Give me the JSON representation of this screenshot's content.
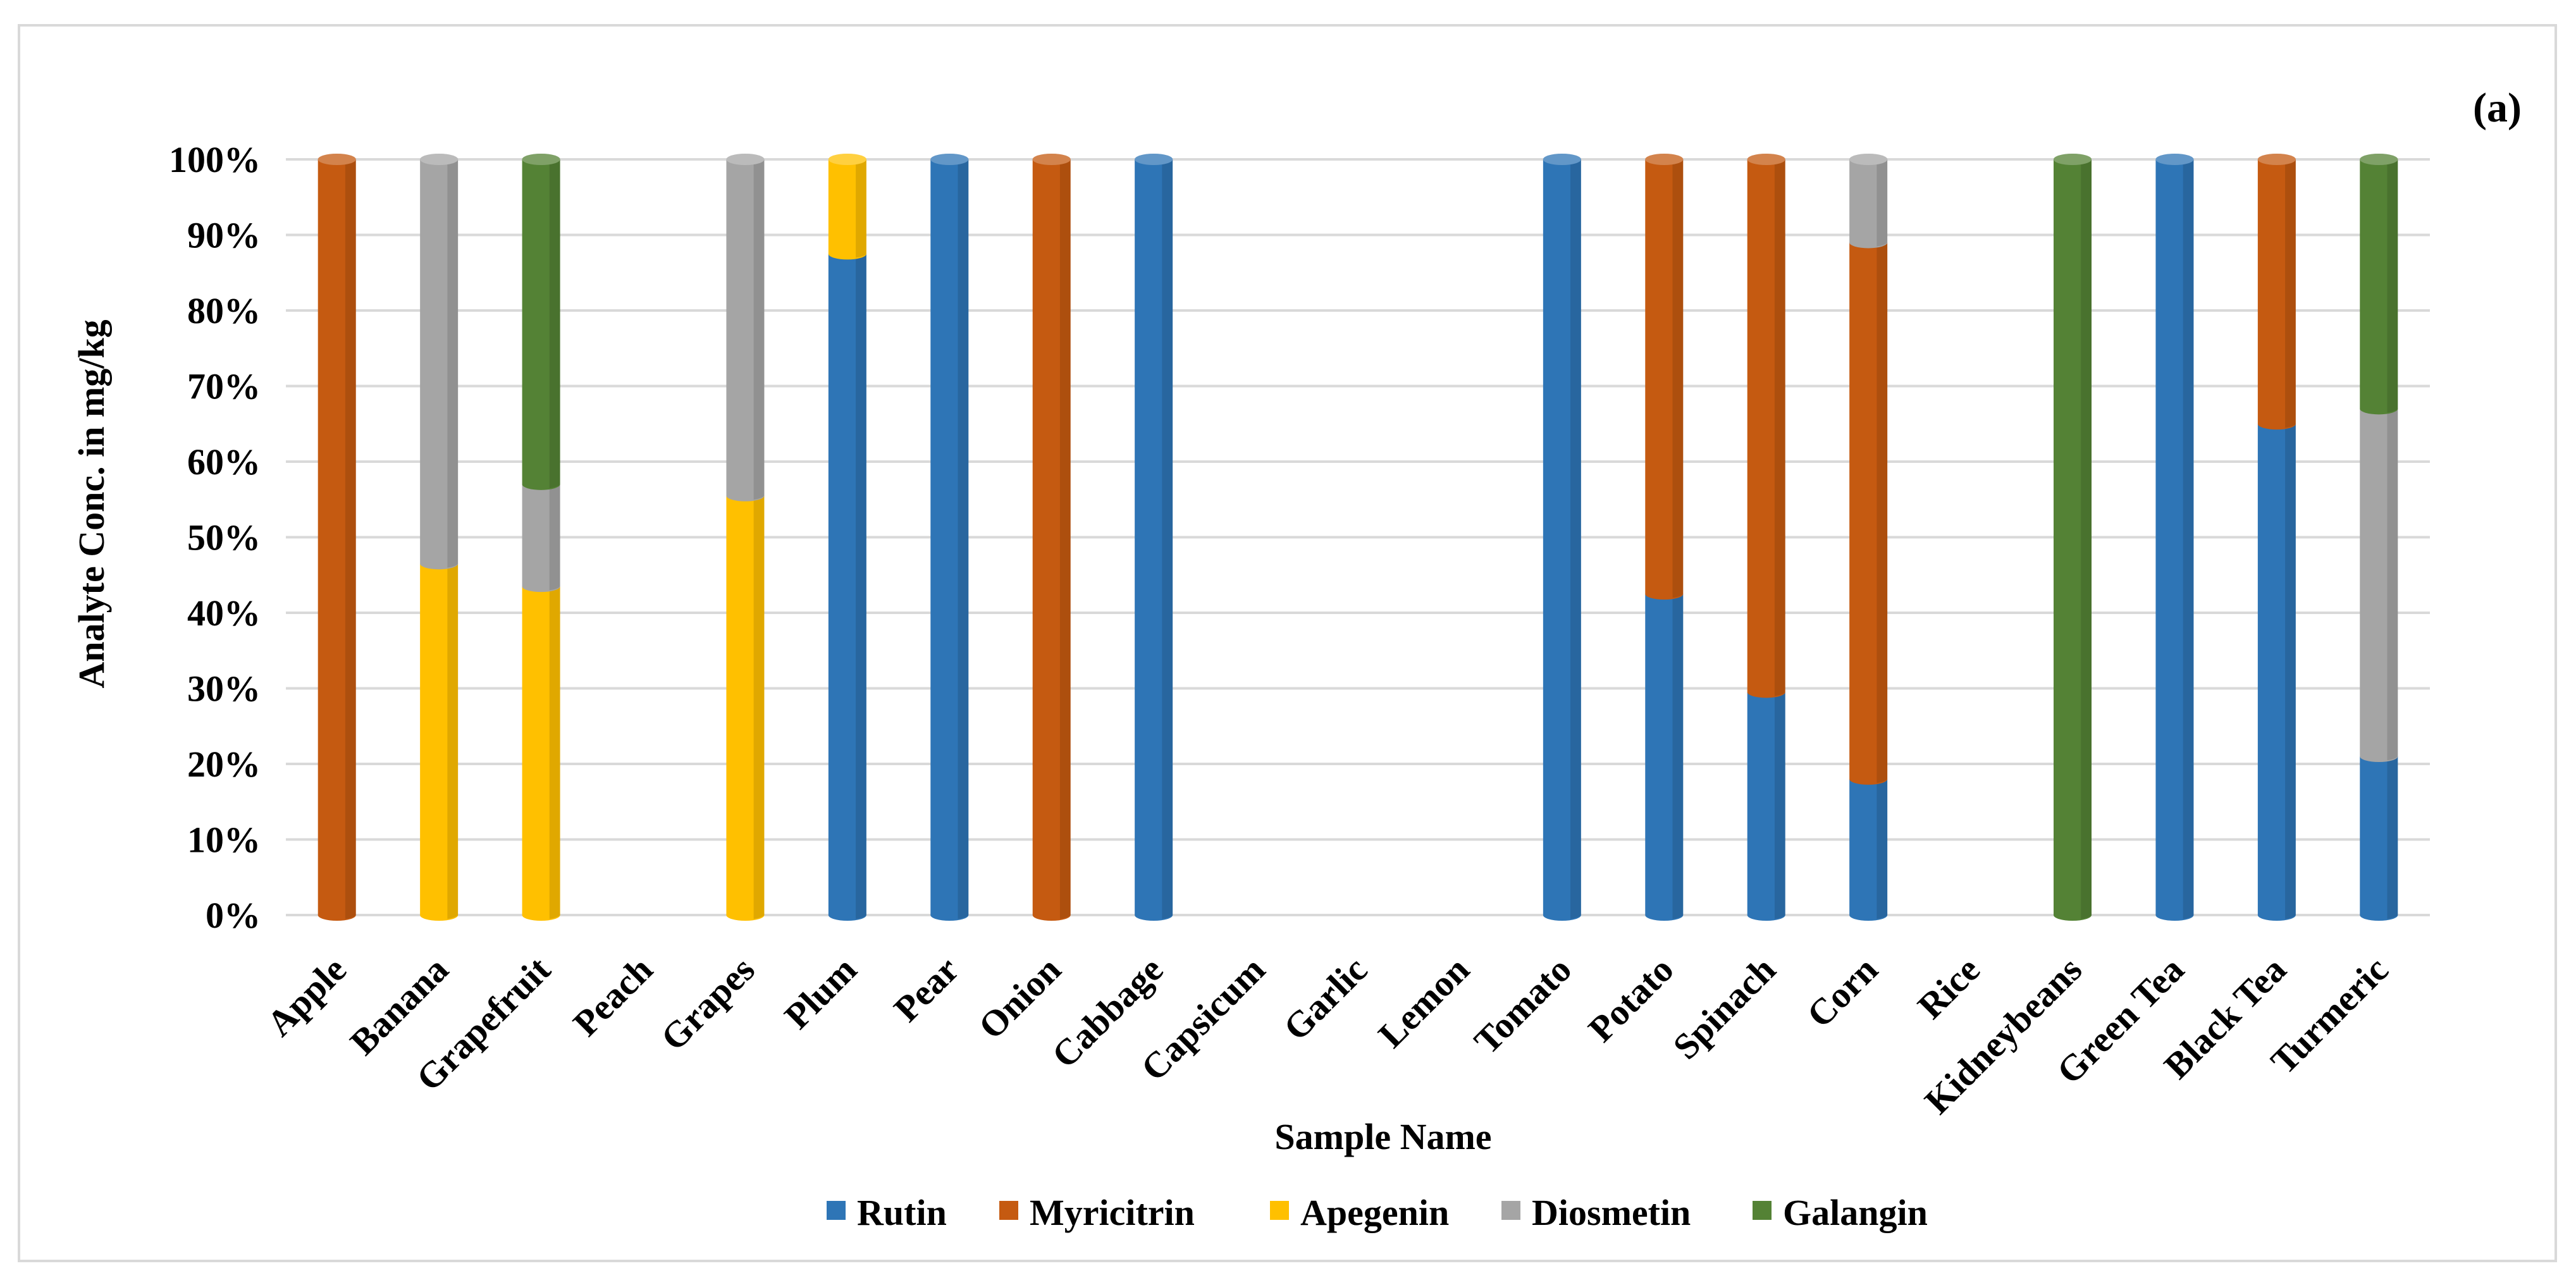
{
  "chart_data": {
    "type": "bar",
    "stacking": "percent",
    "panel_label": "(a)",
    "title": "",
    "xlabel": "Sample Name",
    "ylabel": "Analyte Conc. in mg/kg",
    "ylim": [
      0,
      100
    ],
    "yticks": [
      "0%",
      "10%",
      "20%",
      "30%",
      "40%",
      "50%",
      "60%",
      "70%",
      "80%",
      "90%",
      "100%"
    ],
    "grid": true,
    "legend_position": "bottom",
    "categories": [
      "Apple",
      "Banana",
      "Grapefruit",
      "Peach",
      "Grapes",
      "Plum",
      "Pear",
      "Onion",
      "Cabbage",
      "Capsicum",
      "Garlic",
      "Lemon",
      "Tomato",
      "Potato",
      "Spinach",
      "Corn",
      "Rice",
      "Kidneybeans",
      "Green Tea",
      "Black Tea",
      "Turmeric"
    ],
    "series": [
      {
        "name": "Rutin",
        "color": "#2e75b6",
        "values": [
          0,
          0,
          0,
          0,
          0,
          87.5,
          100,
          0,
          100,
          0,
          0,
          0,
          100,
          42.5,
          29.5,
          18,
          0,
          0,
          100,
          65,
          21
        ]
      },
      {
        "name": "Myricitrin",
        "color": "#c55a11",
        "values": [
          100,
          0,
          0,
          0,
          0,
          0,
          0,
          100,
          0,
          0,
          0,
          0,
          0,
          57.5,
          70.5,
          71,
          0,
          0,
          0,
          35,
          0
        ]
      },
      {
        "name": "Apegenin",
        "color": "#ffc000",
        "values": [
          0,
          46.5,
          43.5,
          0,
          55.5,
          12.5,
          0,
          0,
          0,
          0,
          0,
          0,
          0,
          0,
          0,
          0,
          0,
          0,
          0,
          0,
          0
        ]
      },
      {
        "name": "Diosmetin",
        "color": "#a5a5a5",
        "values": [
          0,
          53.5,
          13.5,
          0,
          44.5,
          0,
          0,
          0,
          0,
          0,
          0,
          0,
          0,
          0,
          0,
          11,
          0,
          0,
          0,
          0,
          46
        ]
      },
      {
        "name": "Galangin",
        "color": "#548235",
        "values": [
          0,
          0,
          43,
          0,
          0,
          0,
          0,
          0,
          0,
          0,
          0,
          0,
          0,
          0,
          0,
          0,
          0,
          100,
          0,
          0,
          33
        ]
      }
    ]
  }
}
